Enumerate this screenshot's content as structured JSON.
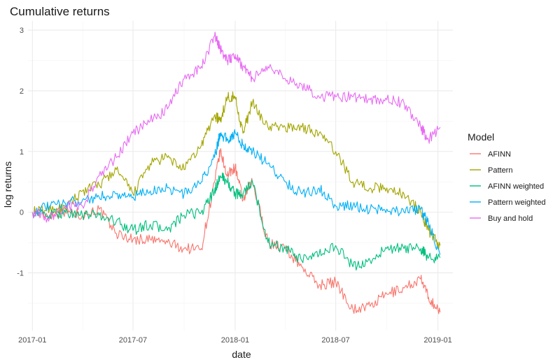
{
  "chart_data": {
    "type": "line",
    "title": "Cumulative returns",
    "xlabel": "date",
    "ylabel": "log returns",
    "x_ticks": [
      "2017-01",
      "2017-07",
      "2018-01",
      "2018-07",
      "2019-01"
    ],
    "y_ticks": [
      -1,
      0,
      1,
      2,
      3
    ],
    "xlim": [
      "2016-12-24",
      "2019-01-28"
    ],
    "ylim": [
      -1.95,
      3.15
    ],
    "grid": true,
    "legend_title": "Model",
    "legend_position": "right",
    "x": [
      "2017-01-01",
      "2017-02-01",
      "2017-03-01",
      "2017-04-01",
      "2017-05-01",
      "2017-06-01",
      "2017-07-01",
      "2017-08-01",
      "2017-09-01",
      "2017-10-01",
      "2017-11-01",
      "2017-11-25",
      "2017-12-05",
      "2017-12-18",
      "2018-01-01",
      "2018-01-15",
      "2018-02-01",
      "2018-03-01",
      "2018-04-01",
      "2018-05-01",
      "2018-06-01",
      "2018-07-01",
      "2018-08-01",
      "2018-09-01",
      "2018-10-01",
      "2018-11-01",
      "2018-12-01",
      "2018-12-15",
      "2019-01-05"
    ],
    "series": [
      {
        "name": "AFINN",
        "color": "#F8766D",
        "values": [
          0.0,
          -0.05,
          0.02,
          -0.05,
          0.05,
          -0.35,
          -0.45,
          -0.45,
          -0.5,
          -0.6,
          -0.6,
          0.5,
          1.0,
          0.6,
          0.75,
          0.2,
          0.5,
          -0.5,
          -0.6,
          -0.9,
          -1.2,
          -1.15,
          -1.6,
          -1.55,
          -1.35,
          -1.25,
          -1.1,
          -1.4,
          -1.65
        ]
      },
      {
        "name": "Pattern",
        "color": "#A3A500",
        "values": [
          0.0,
          0.05,
          0.05,
          0.35,
          0.45,
          0.7,
          0.3,
          0.8,
          0.9,
          0.7,
          1.1,
          1.6,
          1.5,
          1.9,
          1.9,
          1.3,
          1.8,
          1.4,
          1.4,
          1.4,
          1.3,
          1.0,
          0.5,
          0.4,
          0.4,
          0.3,
          0.0,
          -0.3,
          -0.55
        ]
      },
      {
        "name": "AFINN weighted",
        "color": "#00BF7D",
        "values": [
          0.0,
          -0.05,
          0.0,
          -0.05,
          -0.05,
          -0.15,
          -0.3,
          -0.2,
          -0.3,
          -0.05,
          0.0,
          0.35,
          0.6,
          0.5,
          0.3,
          0.3,
          0.5,
          -0.5,
          -0.6,
          -0.8,
          -0.7,
          -0.55,
          -0.9,
          -0.8,
          -0.6,
          -0.6,
          -0.6,
          -0.75,
          -0.75
        ]
      },
      {
        "name": "Pattern weighted",
        "color": "#00B0F6",
        "values": [
          0.0,
          0.1,
          0.15,
          0.2,
          0.25,
          0.3,
          0.25,
          0.35,
          0.4,
          0.3,
          0.5,
          0.9,
          1.3,
          1.2,
          1.3,
          1.1,
          1.0,
          0.8,
          0.5,
          0.3,
          0.4,
          0.1,
          0.1,
          0.05,
          0.05,
          0.0,
          0.05,
          -0.2,
          -0.7
        ]
      },
      {
        "name": "Buy and hold",
        "color": "#E76BF3",
        "values": [
          0.0,
          -0.1,
          0.1,
          0.1,
          0.6,
          0.9,
          1.3,
          1.5,
          1.7,
          2.2,
          2.4,
          2.9,
          2.7,
          2.5,
          2.6,
          2.4,
          2.2,
          2.4,
          2.2,
          2.1,
          1.9,
          1.9,
          1.9,
          1.85,
          1.85,
          1.8,
          1.4,
          1.2,
          1.4
        ]
      }
    ]
  }
}
